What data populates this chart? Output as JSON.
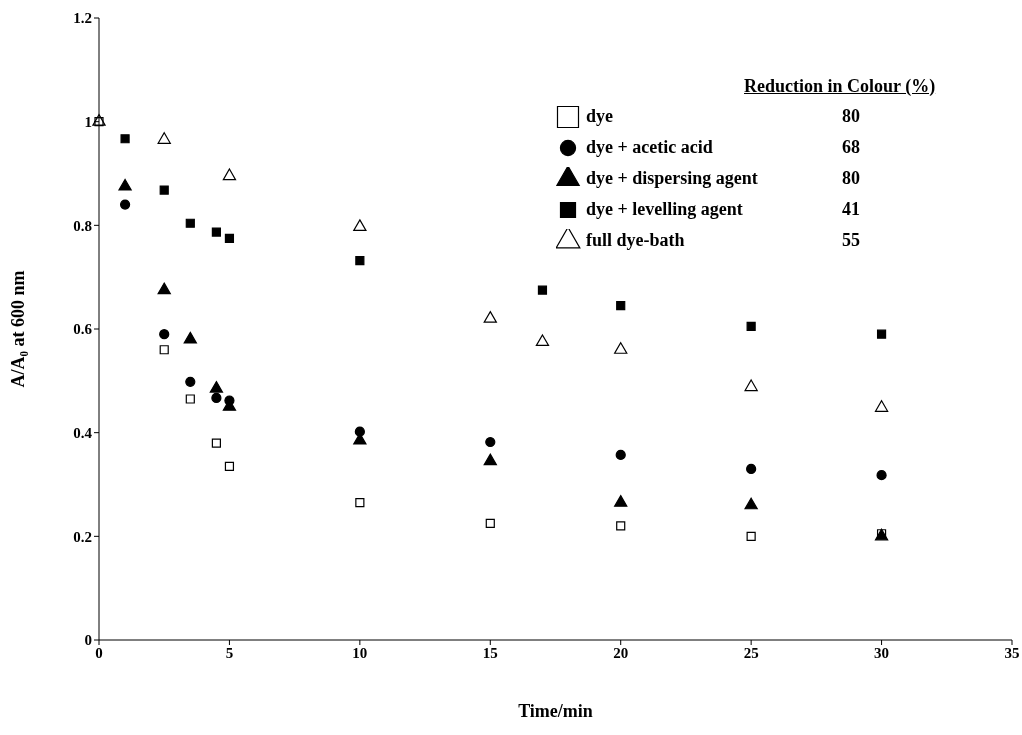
{
  "chart_data": {
    "type": "scatter",
    "xlabel": "Time/min",
    "ylabel": "A/A₀ at 600 nm",
    "legend_title": "Reduction in Colour (%)",
    "annotations": [
      "80",
      "68",
      "80",
      "41",
      "55"
    ],
    "xlim": [
      0,
      35
    ],
    "xticks": [
      0,
      5,
      10,
      15,
      20,
      25,
      30,
      35
    ],
    "ylim": [
      0,
      1.2
    ],
    "yticks": [
      0,
      0.2,
      0.4,
      0.6,
      0.8,
      1,
      1.2
    ],
    "grid": false,
    "legend": "top right",
    "series": [
      {
        "name": "dye",
        "color": "#000000",
        "marker": "square",
        "x": [
          0,
          2.5,
          3.5,
          4.5,
          5,
          10,
          15,
          20,
          25,
          30
        ],
        "values": [
          1.0,
          0.56,
          0.465,
          0.38,
          0.335,
          0.265,
          0.225,
          0.22,
          0.2,
          0.205
        ]
      },
      {
        "name": "dye + acetic acid",
        "color": "#000000",
        "marker": "circle",
        "x": [
          1,
          2.5,
          3.5,
          4.5,
          5,
          10,
          15,
          20,
          25,
          30
        ],
        "values": [
          0.84,
          0.59,
          0.498,
          0.467,
          0.462,
          0.402,
          0.382,
          0.357,
          0.33,
          0.318
        ]
      },
      {
        "name": "dye + dispersing agent",
        "color": "#000000",
        "marker": "triangle",
        "x": [
          1,
          2.5,
          3.5,
          4.5,
          5,
          10,
          15,
          20,
          25,
          30
        ],
        "values": [
          0.875,
          0.675,
          0.58,
          0.485,
          0.45,
          0.385,
          0.345,
          0.265,
          0.26,
          0.2
        ]
      },
      {
        "name": "dye + levelling agent",
        "color": "#000000",
        "marker": "square",
        "x": [
          1,
          2.5,
          3.5,
          4.5,
          5,
          10,
          17,
          20,
          25,
          30
        ],
        "values": [
          0.967,
          0.868,
          0.804,
          0.787,
          0.775,
          0.732,
          0.675,
          0.645,
          0.605,
          0.59
        ]
      },
      {
        "name": "full dye-bath",
        "color": "#000000",
        "marker": "triangle",
        "x": [
          0,
          2.5,
          5,
          10,
          15,
          17,
          20,
          25,
          30
        ],
        "values": [
          1.0,
          0.965,
          0.895,
          0.797,
          0.62,
          0.575,
          0.56,
          0.488,
          0.448
        ]
      }
    ]
  }
}
